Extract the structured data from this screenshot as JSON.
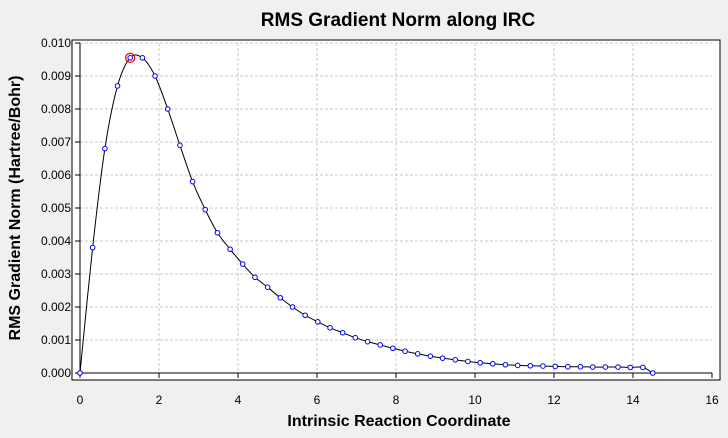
{
  "chart_data": {
    "type": "line",
    "title": "RMS Gradient Norm along IRC",
    "xlabel": "Intrinsic Reaction Coordinate",
    "ylabel": "RMS Gradient Norm (Hartree/Bohr)",
    "xlim": [
      0,
      16
    ],
    "ylim": [
      0,
      0.01
    ],
    "x_ticks": [
      0,
      2,
      4,
      6,
      8,
      10,
      12,
      14,
      16
    ],
    "x_tick_labels": [
      "0",
      "2",
      "4",
      "6",
      "8",
      "10",
      "12",
      "14",
      "16"
    ],
    "y_ticks": [
      0,
      0.001,
      0.002,
      0.003,
      0.004,
      0.005,
      0.006,
      0.007,
      0.008,
      0.009,
      0.01
    ],
    "y_tick_labels": [
      "0.000",
      "0.001",
      "0.002",
      "0.003",
      "0.004",
      "0.005",
      "0.006",
      "0.007",
      "0.008",
      "0.009",
      "0.010"
    ],
    "grid": true,
    "colors": {
      "line": "#000000",
      "marker": "#0000ff",
      "highlight": "#ff0000",
      "plot_bg": "#ffffff",
      "grid": "#c8c8c8"
    },
    "highlight_point": {
      "x": 1.27,
      "y": 0.00955
    },
    "series": [
      {
        "x": [
          0.0,
          0.32,
          0.63,
          0.95,
          1.27,
          1.58,
          1.9,
          2.22,
          2.53,
          2.85,
          3.17,
          3.48,
          3.8,
          4.12,
          4.43,
          4.75,
          5.07,
          5.38,
          5.7,
          6.02,
          6.33,
          6.65,
          6.97,
          7.28,
          7.6,
          7.92,
          8.23,
          8.55,
          8.87,
          9.18,
          9.5,
          9.82,
          10.13,
          10.45,
          10.77,
          11.08,
          11.4,
          11.72,
          12.03,
          12.35,
          12.67,
          12.98,
          13.3,
          13.62,
          13.93,
          14.25,
          14.5
        ],
        "y": [
          0.0,
          0.0038,
          0.0068,
          0.0087,
          0.00955,
          0.00955,
          0.009,
          0.008,
          0.0069,
          0.0058,
          0.00495,
          0.00425,
          0.00375,
          0.0033,
          0.0029,
          0.0026,
          0.00228,
          0.002,
          0.00175,
          0.00155,
          0.00137,
          0.00122,
          0.00107,
          0.00095,
          0.00085,
          0.00075,
          0.00066,
          0.00058,
          0.00051,
          0.00045,
          0.0004,
          0.00035,
          0.00031,
          0.00028,
          0.00025,
          0.00023,
          0.00022,
          0.00021,
          0.0002,
          0.00019,
          0.00019,
          0.00018,
          0.00018,
          0.00018,
          0.00017,
          0.00017,
          0.0
        ]
      }
    ]
  }
}
